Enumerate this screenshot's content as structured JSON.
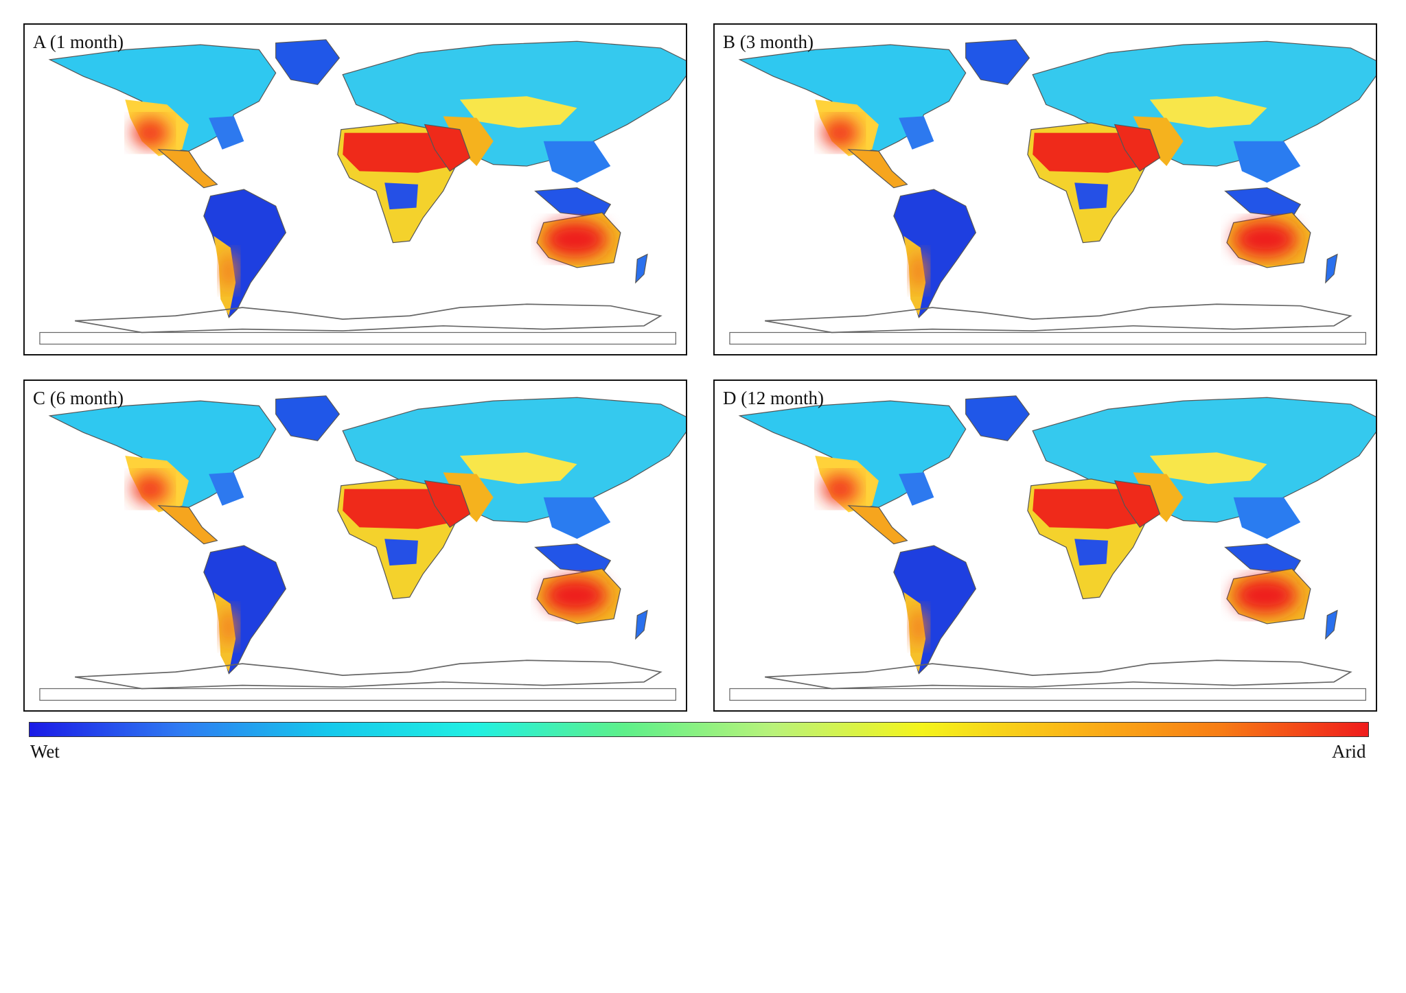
{
  "panels": [
    {
      "id": "a",
      "label": "A (1 month)"
    },
    {
      "id": "b",
      "label": "B (3 month)"
    },
    {
      "id": "c",
      "label": "C (6 month)"
    },
    {
      "id": "d",
      "label": "D (12 month)"
    }
  ],
  "legend": {
    "low_label": "Wet",
    "high_label": "Arid",
    "colors": [
      "#1a1ae6",
      "#2f7af2",
      "#16c8ec",
      "#22f0e2",
      "#5ef08a",
      "#b9f27a",
      "#f4f41c",
      "#fbb618",
      "#f77d15",
      "#ef1c1c"
    ]
  }
}
